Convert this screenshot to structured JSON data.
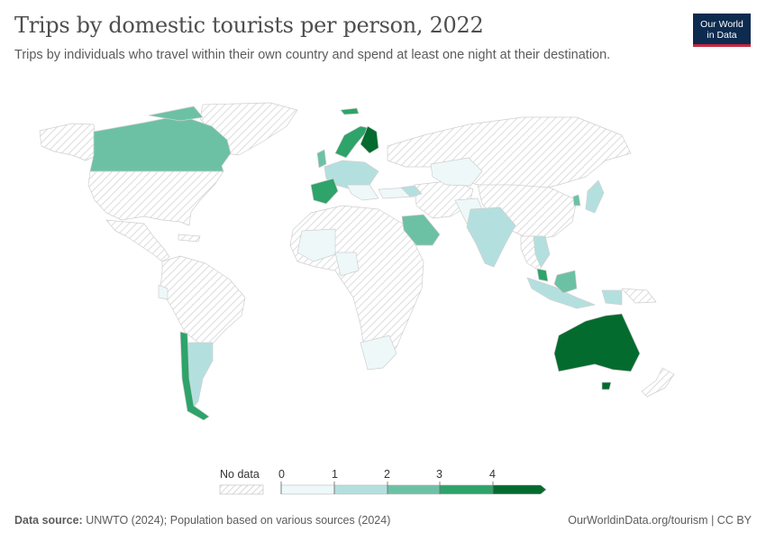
{
  "header": {
    "title": "Trips by domestic tourists per person, 2022",
    "subtitle": "Trips by individuals who travel within their own country and spend at least one night at their destination."
  },
  "logo": {
    "line1": "Our World",
    "line2": "in Data"
  },
  "legend": {
    "no_data_label": "No data",
    "ticks": [
      "0",
      "1",
      "2",
      "3",
      "4"
    ],
    "colors": [
      "#eef8f8",
      "#b3e0df",
      "#6cc1a4",
      "#2ea36a",
      "#046b2e"
    ],
    "no_data_pattern": "hatched-grey"
  },
  "colors": {
    "land_no_data": "#ffffff",
    "hatch": "#d9d9d9",
    "border": "#c8c8c8"
  },
  "footer": {
    "source_label": "Data source:",
    "source_text": "UNWTO (2024); Population based on various sources (2024)",
    "right_text": "OurWorldinData.org/tourism | CC BY"
  }
}
